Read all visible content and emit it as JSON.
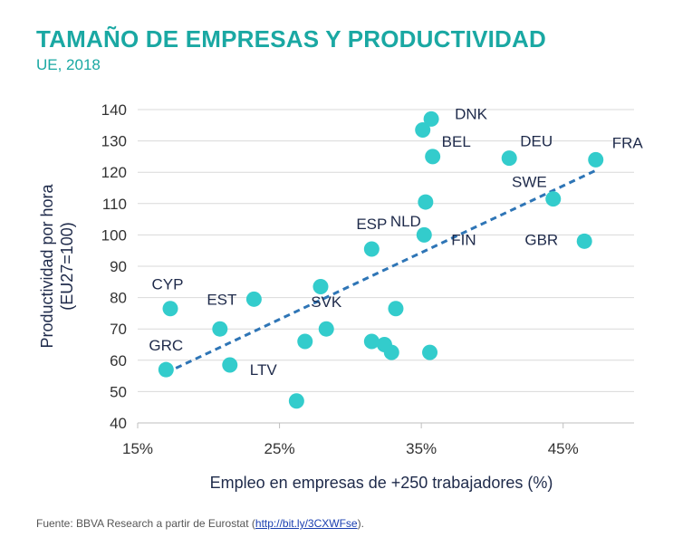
{
  "header": {
    "title": "TAMAÑO DE EMPRESAS Y PRODUCTIVIDAD",
    "subtitle": "UE, 2018"
  },
  "footer": {
    "source_prefix": "Fuente: BBVA Research a partir de Eurostat (",
    "source_link": "http://bit.ly/3CXWFse",
    "source_suffix": ")."
  },
  "chart_data": {
    "type": "scatter",
    "title": "TAMAÑO DE EMPRESAS Y PRODUCTIVIDAD",
    "subtitle": "UE, 2018",
    "xlabel": "Empleo en empresas de +250 trabajadores (%)",
    "ylabel_lines": [
      "Productividad por hora",
      "(EU27=100)"
    ],
    "xlim": [
      15,
      50
    ],
    "ylim": [
      40,
      140
    ],
    "x_ticks": [
      15,
      25,
      35,
      45
    ],
    "x_tick_labels": [
      "15%",
      "25%",
      "35%",
      "45%"
    ],
    "y_ticks": [
      40,
      50,
      60,
      70,
      80,
      90,
      100,
      110,
      120,
      130,
      140
    ],
    "y_tick_labels": [
      "40",
      "50",
      "60",
      "70",
      "80",
      "90",
      "100",
      "110",
      "120",
      "130",
      "140"
    ],
    "grid": "horizontal",
    "legend": "none",
    "colors": {
      "points": "#33cccc",
      "trend": "#2e75b6",
      "grid": "#d9d9d9"
    },
    "points": [
      {
        "label": "DNK",
        "x": 35.7,
        "y": 137
      },
      {
        "label": "",
        "x": 35.1,
        "y": 133.5
      },
      {
        "label": "BEL",
        "x": 35.8,
        "y": 125
      },
      {
        "label": "DEU",
        "x": 41.2,
        "y": 124.5
      },
      {
        "label": "FRA",
        "x": 47.3,
        "y": 124
      },
      {
        "label": "NLD",
        "x": 35.3,
        "y": 110.5
      },
      {
        "label": "SWE",
        "x": 44.3,
        "y": 111.5
      },
      {
        "label": "FIN",
        "x": 35.2,
        "y": 100
      },
      {
        "label": "ESP",
        "x": 31.5,
        "y": 95.5
      },
      {
        "label": "GBR",
        "x": 46.5,
        "y": 98
      },
      {
        "label": "CYP",
        "x": 17.3,
        "y": 76.5
      },
      {
        "label": "EST",
        "x": 23.2,
        "y": 79.5
      },
      {
        "label": "",
        "x": 27.9,
        "y": 83.5
      },
      {
        "label": "SVK",
        "x": 28.3,
        "y": 70
      },
      {
        "label": "",
        "x": 33.2,
        "y": 76.5
      },
      {
        "label": "",
        "x": 20.8,
        "y": 70
      },
      {
        "label": "",
        "x": 26.8,
        "y": 66
      },
      {
        "label": "",
        "x": 31.5,
        "y": 66
      },
      {
        "label": "",
        "x": 32.4,
        "y": 65
      },
      {
        "label": "",
        "x": 32.9,
        "y": 62.5
      },
      {
        "label": "",
        "x": 35.6,
        "y": 62.5
      },
      {
        "label": "LTV",
        "x": 21.5,
        "y": 58.5
      },
      {
        "label": "GRC",
        "x": 17.0,
        "y": 57
      },
      {
        "label": "",
        "x": 26.2,
        "y": 47
      }
    ],
    "trendline": {
      "x": [
        17.0,
        47.5
      ],
      "y": [
        56,
        121
      ]
    }
  }
}
